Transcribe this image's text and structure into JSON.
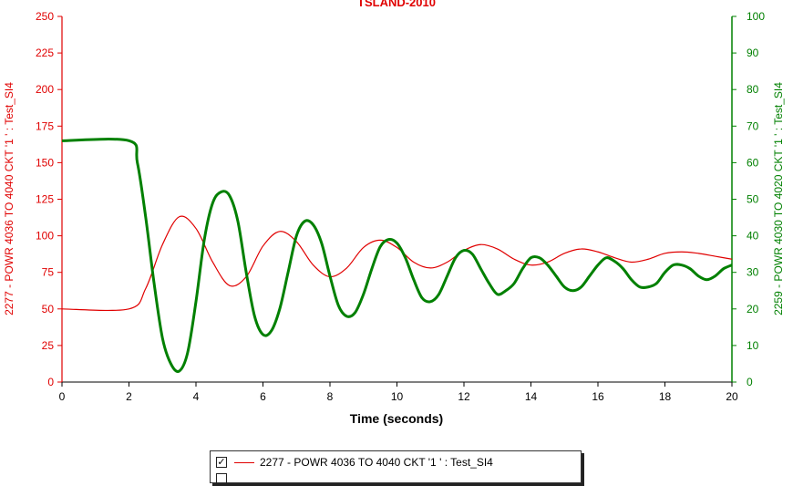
{
  "chart_data": {
    "type": "line",
    "title": "TSLAND-2010",
    "xlabel": "Time (seconds)",
    "ylabel_left": "2277 - POWR 4036 TO 4040 CKT '1 ' : Test_SI4",
    "ylabel_right": "2259 - POWR 4030 TO 4020 CKT '1 ' : Test_SI4",
    "xlim": [
      0,
      20
    ],
    "ylim_left": [
      0,
      250
    ],
    "ylim_right": [
      0,
      100
    ],
    "x_ticks": [
      "0",
      "2",
      "4",
      "6",
      "8",
      "10",
      "12",
      "14",
      "16",
      "18",
      "20"
    ],
    "y_ticks_left": [
      "0",
      "25",
      "50",
      "75",
      "100",
      "125",
      "150",
      "175",
      "200",
      "225",
      "250"
    ],
    "y_ticks_right": [
      "0",
      "10",
      "20",
      "30",
      "40",
      "50",
      "60",
      "70",
      "80",
      "90",
      "100"
    ],
    "grid": false,
    "legend_position": "bottom",
    "series": [
      {
        "name": "2277 - POWR 4036 TO 4040 CKT '1 ' : Test_SI4",
        "axis": "left",
        "color": "#e00000",
        "x": [
          0,
          2,
          2.5,
          3.0,
          3.5,
          4.0,
          4.5,
          5.0,
          5.5,
          6.0,
          6.5,
          7.0,
          7.5,
          8.0,
          8.5,
          9.0,
          9.5,
          10.0,
          10.5,
          11.0,
          11.5,
          12.0,
          12.5,
          13.0,
          13.5,
          14.0,
          14.5,
          15.0,
          15.5,
          16.0,
          16.5,
          17.0,
          17.5,
          18.0,
          18.5,
          19.0,
          19.5,
          20.0
        ],
        "values": [
          50,
          50,
          64,
          94,
          113,
          105,
          82,
          66,
          72,
          93,
          103,
          96,
          80,
          72,
          78,
          92,
          97,
          92,
          82,
          78,
          82,
          90,
          94,
          91,
          84,
          80,
          82,
          88,
          91,
          89,
          85,
          82,
          84,
          88,
          89,
          88,
          86,
          84
        ]
      },
      {
        "name": "2259 - POWR 4030 TO 4020 CKT '1 ' : Test_SI4",
        "axis": "right",
        "color": "#008000",
        "x": [
          0,
          2,
          2.25,
          2.5,
          2.75,
          3.0,
          3.25,
          3.5,
          3.75,
          4.0,
          4.25,
          4.5,
          4.75,
          5.0,
          5.25,
          5.5,
          5.75,
          6.0,
          6.25,
          6.5,
          6.75,
          7.0,
          7.25,
          7.5,
          7.75,
          8.0,
          8.25,
          8.5,
          8.75,
          9.0,
          9.25,
          9.5,
          9.75,
          10.0,
          10.25,
          10.5,
          10.75,
          11.0,
          11.25,
          11.5,
          11.75,
          12.0,
          12.25,
          12.5,
          12.75,
          13.0,
          13.25,
          13.5,
          13.75,
          14.0,
          14.25,
          14.5,
          14.75,
          15.0,
          15.25,
          15.5,
          15.75,
          16.0,
          16.25,
          16.5,
          16.75,
          17.0,
          17.25,
          17.5,
          17.75,
          18.0,
          18.25,
          18.5,
          18.75,
          19.0,
          19.25,
          19.5,
          19.75,
          20.0
        ],
        "values": [
          66,
          66,
          60,
          45,
          27,
          12,
          5,
          3,
          8,
          22,
          39,
          49,
          52,
          51,
          44,
          30,
          18,
          13,
          14,
          20,
          30,
          40,
          44,
          43,
          38,
          29,
          21,
          18,
          19,
          24,
          31,
          37,
          39,
          38,
          34,
          28,
          23,
          22,
          24,
          29,
          34,
          36,
          35,
          31,
          27,
          24,
          25,
          27,
          31,
          34,
          34,
          32,
          29,
          26,
          25,
          26,
          29,
          32,
          34,
          33,
          31,
          28,
          26,
          26,
          27,
          30,
          32,
          32,
          31,
          29,
          28,
          29,
          31,
          32
        ]
      }
    ]
  }
}
